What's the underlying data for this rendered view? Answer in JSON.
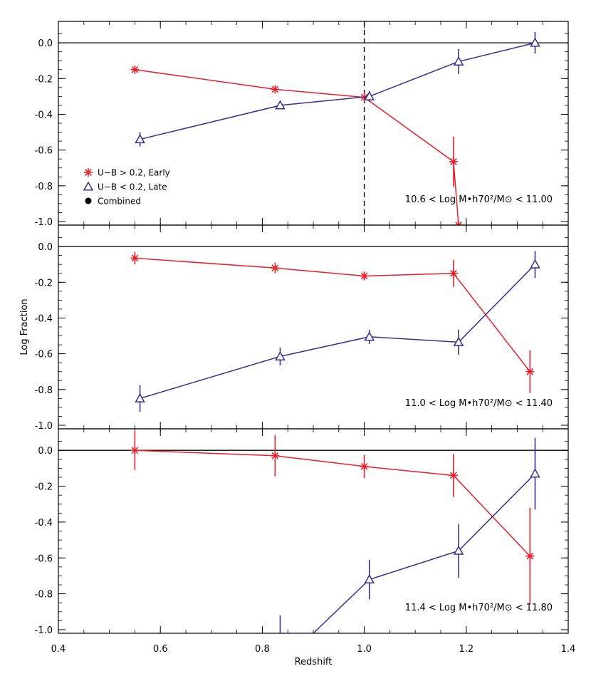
{
  "chart_data": {
    "type": "line",
    "xlabel": "Redshift",
    "ylabel": "Log Fraction",
    "xlim": [
      0.4,
      1.4
    ],
    "ylim": [
      -1.02,
      0.12
    ],
    "x_ticks": [
      "0.4",
      "0.6",
      "0.8",
      "1.0",
      "1.2",
      "1.4"
    ],
    "y_ticks": [
      "0.0",
      "-0.2",
      "-0.4",
      "-0.6",
      "-0.8",
      "-1.0"
    ],
    "colors": {
      "early": "#e8202a",
      "late": "#3a2f8f",
      "reference": "#000000"
    },
    "legend": {
      "placement": "lower-left of top panel",
      "entries": [
        {
          "label": "U−B > 0.2, Early",
          "marker": "asterisk",
          "color": "#e8202a"
        },
        {
          "label": "U−B < 0.2, Late",
          "marker": "triangle",
          "color": "#3a2f8f"
        },
        {
          "label": "Combined",
          "marker": "filled-circle",
          "color": "#000000"
        }
      ]
    },
    "panels": [
      {
        "annotation": "10.6 < Log M•h70²/M⊙ < 11.00",
        "vertical_dashed_line_x": 1.0,
        "series": [
          {
            "key": "early",
            "points": [
              {
                "x": 0.55,
                "y": -0.15,
                "err": 0.0
              },
              {
                "x": 0.825,
                "y": -0.26,
                "err": 0.0
              },
              {
                "x": 1.0,
                "y": -0.305,
                "err": 0.0
              },
              {
                "x": 1.175,
                "y": -0.665,
                "err": 0.14
              },
              {
                "x": 1.185,
                "y": -1.02,
                "err": 0.0
              }
            ]
          },
          {
            "key": "late",
            "points": [
              {
                "x": 0.56,
                "y": -0.54,
                "err": 0.04
              },
              {
                "x": 0.835,
                "y": -0.35,
                "err": 0.0
              },
              {
                "x": 1.01,
                "y": -0.3,
                "err": 0.03
              },
              {
                "x": 1.185,
                "y": -0.105,
                "err": 0.07
              },
              {
                "x": 1.335,
                "y": 0.0,
                "err": 0.06
              }
            ]
          }
        ]
      },
      {
        "annotation": "11.0 < Log M•h70²/M⊙ < 11.40",
        "series": [
          {
            "key": "early",
            "points": [
              {
                "x": 0.55,
                "y": -0.065,
                "err": 0.035
              },
              {
                "x": 0.825,
                "y": -0.12,
                "err": 0.03
              },
              {
                "x": 1.0,
                "y": -0.165,
                "err": 0.025
              },
              {
                "x": 1.175,
                "y": -0.15,
                "err": 0.075
              },
              {
                "x": 1.325,
                "y": -0.7,
                "err": 0.12
              }
            ]
          },
          {
            "key": "late",
            "points": [
              {
                "x": 0.56,
                "y": -0.85,
                "err": 0.075
              },
              {
                "x": 0.835,
                "y": -0.615,
                "err": 0.05
              },
              {
                "x": 1.01,
                "y": -0.505,
                "err": 0.04
              },
              {
                "x": 1.185,
                "y": -0.535,
                "err": 0.07
              },
              {
                "x": 1.335,
                "y": -0.1,
                "err": 0.075
              }
            ]
          }
        ]
      },
      {
        "annotation": "11.4 < Log M•h70²/M⊙ < 11.80",
        "series": [
          {
            "key": "early",
            "points": [
              {
                "x": 0.55,
                "y": 0.0,
                "err": 0.11
              },
              {
                "x": 0.825,
                "y": -0.03,
                "err": 0.115
              },
              {
                "x": 1.0,
                "y": -0.09,
                "err": 0.065
              },
              {
                "x": 1.175,
                "y": -0.14,
                "err": 0.12
              },
              {
                "x": 1.325,
                "y": -0.59,
                "err": 0.27
              }
            ]
          },
          {
            "key": "late",
            "points": [
              {
                "x": 0.835,
                "y": -1.02,
                "err": 0.0,
                "errbar_top": -0.92,
                "hidden_marker": true
              },
              {
                "x": 0.9,
                "y": -1.02,
                "err": 0.0,
                "hidden_marker": true
              },
              {
                "x": 1.01,
                "y": -0.72,
                "err": 0.11
              },
              {
                "x": 1.185,
                "y": -0.56,
                "err": 0.15
              },
              {
                "x": 1.335,
                "y": -0.13,
                "err": 0.2
              }
            ]
          }
        ]
      }
    ]
  }
}
